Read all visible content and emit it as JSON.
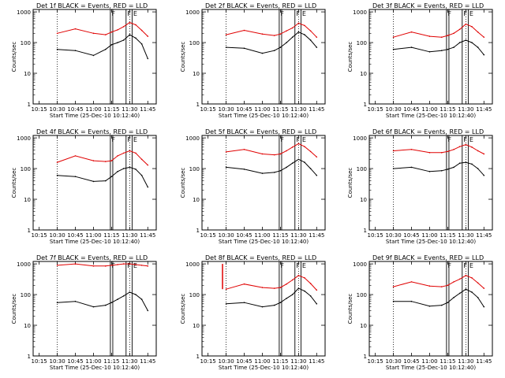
{
  "colors": {
    "events": "#000000",
    "lld": "#e00000",
    "axes": "#000000",
    "background": "#ffffff"
  },
  "common": {
    "ylabel": "Counts/sec",
    "xlabel": "Start Time (25-Dec-10 10:12:40)",
    "x_ticks": [
      "10:15",
      "10:30",
      "10:45",
      "11:00",
      "11:15",
      "11:30",
      "11:45"
    ],
    "y_ticks": [
      "1",
      "10",
      "100",
      "1000"
    ]
  },
  "chart_data": [
    {
      "type": "line",
      "title": "Det 1f BLACK = Events, RED = LLD",
      "x": [
        "10:30",
        "10:45",
        "11:00",
        "11:10",
        "11:15",
        "11:20",
        "11:25",
        "11:30",
        "11:35",
        "11:40",
        "11:45"
      ],
      "series": [
        {
          "name": "Events",
          "color": "#000000",
          "values": [
            60,
            55,
            38,
            60,
            85,
            100,
            120,
            180,
            140,
            90,
            30
          ]
        },
        {
          "name": "LLD",
          "color": "#e00000",
          "values": [
            200,
            280,
            200,
            180,
            220,
            260,
            330,
            450,
            380,
            250,
            160
          ]
        }
      ],
      "markers": [
        {
          "label": "F",
          "x": "11:14"
        },
        {
          "label": "",
          "x": "11:16"
        },
        {
          "label": "F",
          "x": "11:27"
        },
        {
          "label": "E",
          "x": "11:32"
        }
      ],
      "dotted_lines": [
        "10:30",
        "11:30"
      ]
    },
    {
      "type": "line",
      "title": "Det 2f BLACK = Events, RED = LLD",
      "x": [
        "10:30",
        "10:45",
        "11:00",
        "11:10",
        "11:15",
        "11:20",
        "11:25",
        "11:30",
        "11:35",
        "11:40",
        "11:45"
      ],
      "series": [
        {
          "name": "Events",
          "color": "#000000",
          "values": [
            70,
            65,
            45,
            55,
            70,
            100,
            150,
            220,
            180,
            120,
            70
          ]
        },
        {
          "name": "LLD",
          "color": "#e00000",
          "values": [
            180,
            250,
            190,
            170,
            190,
            240,
            300,
            430,
            360,
            240,
            150
          ]
        }
      ],
      "markers": [
        {
          "label": "F",
          "x": "11:14"
        },
        {
          "label": "",
          "x": "11:16"
        },
        {
          "label": "F",
          "x": "11:27"
        },
        {
          "label": "E",
          "x": "11:32"
        }
      ],
      "dotted_lines": [
        "10:30",
        "11:30"
      ]
    },
    {
      "type": "line",
      "title": "Det 3f BLACK = Events, RED = LLD",
      "x": [
        "10:30",
        "10:45",
        "11:00",
        "11:10",
        "11:15",
        "11:20",
        "11:25",
        "11:30",
        "11:35",
        "11:40",
        "11:45"
      ],
      "series": [
        {
          "name": "Events",
          "color": "#000000",
          "values": [
            60,
            70,
            50,
            55,
            60,
            70,
            100,
            120,
            100,
            70,
            40
          ]
        },
        {
          "name": "LLD",
          "color": "#e00000",
          "values": [
            150,
            220,
            160,
            150,
            170,
            200,
            270,
            400,
            330,
            220,
            150
          ]
        }
      ],
      "markers": [
        {
          "label": "F",
          "x": "11:14"
        },
        {
          "label": "",
          "x": "11:16"
        },
        {
          "label": "F",
          "x": "11:27"
        },
        {
          "label": "E",
          "x": "11:32"
        }
      ],
      "dotted_lines": [
        "10:30",
        "11:30"
      ]
    },
    {
      "type": "line",
      "title": "Det 4f BLACK = Events, RED = LLD",
      "x": [
        "10:30",
        "10:45",
        "11:00",
        "11:10",
        "11:15",
        "11:20",
        "11:25",
        "11:30",
        "11:35",
        "11:40",
        "11:45"
      ],
      "series": [
        {
          "name": "Events",
          "color": "#000000",
          "values": [
            60,
            55,
            38,
            40,
            55,
            80,
            100,
            110,
            95,
            60,
            25
          ]
        },
        {
          "name": "LLD",
          "color": "#e00000",
          "values": [
            160,
            260,
            180,
            170,
            180,
            260,
            320,
            380,
            320,
            200,
            130
          ]
        }
      ],
      "markers": [
        {
          "label": "F",
          "x": "11:14"
        },
        {
          "label": "",
          "x": "11:16"
        },
        {
          "label": "F",
          "x": "11:27"
        },
        {
          "label": "E",
          "x": "11:32"
        }
      ],
      "dotted_lines": [
        "10:30",
        "11:30"
      ]
    },
    {
      "type": "line",
      "title": "Det 5f BLACK = Events, RED = LLD",
      "x": [
        "10:30",
        "10:45",
        "11:00",
        "11:10",
        "11:15",
        "11:20",
        "11:25",
        "11:30",
        "11:35",
        "11:40",
        "11:45"
      ],
      "series": [
        {
          "name": "Events",
          "color": "#000000",
          "values": [
            110,
            95,
            70,
            75,
            85,
            110,
            150,
            200,
            160,
            100,
            60
          ]
        },
        {
          "name": "LLD",
          "color": "#e00000",
          "values": [
            350,
            420,
            300,
            280,
            300,
            380,
            500,
            650,
            520,
            360,
            240
          ]
        }
      ],
      "markers": [
        {
          "label": "F",
          "x": "11:14"
        },
        {
          "label": "",
          "x": "11:16"
        },
        {
          "label": "F",
          "x": "11:27"
        },
        {
          "label": "E",
          "x": "11:32"
        }
      ],
      "dotted_lines": [
        "10:30",
        "11:30"
      ]
    },
    {
      "type": "line",
      "title": "Det 6f BLACK = Events, RED = LLD",
      "x": [
        "10:30",
        "10:45",
        "11:00",
        "11:10",
        "11:15",
        "11:20",
        "11:25",
        "11:30",
        "11:35",
        "11:40",
        "11:45"
      ],
      "series": [
        {
          "name": "Events",
          "color": "#000000",
          "values": [
            100,
            110,
            80,
            85,
            95,
            110,
            150,
            160,
            140,
            100,
            60
          ]
        },
        {
          "name": "LLD",
          "color": "#e00000",
          "values": [
            380,
            420,
            330,
            330,
            360,
            420,
            520,
            600,
            500,
            380,
            300
          ]
        }
      ],
      "markers": [
        {
          "label": "F",
          "x": "11:14"
        },
        {
          "label": "",
          "x": "11:16"
        },
        {
          "label": "F",
          "x": "11:27"
        },
        {
          "label": "E",
          "x": "11:32"
        }
      ],
      "dotted_lines": [
        "10:30",
        "11:30"
      ]
    },
    {
      "type": "line",
      "title": "Det 7f BLACK = Events, RED = LLD",
      "x": [
        "10:30",
        "10:45",
        "11:00",
        "11:10",
        "11:15",
        "11:20",
        "11:25",
        "11:30",
        "11:35",
        "11:40",
        "11:45"
      ],
      "series": [
        {
          "name": "Events",
          "color": "#000000",
          "values": [
            55,
            60,
            40,
            45,
            55,
            70,
            90,
            120,
            100,
            70,
            30
          ]
        },
        {
          "name": "LLD",
          "color": "#e00000",
          "values": [
            900,
            1000,
            850,
            850,
            900,
            950,
            1000,
            1000,
            950,
            900,
            850
          ]
        }
      ],
      "markers": [
        {
          "label": "F",
          "x": "11:14"
        },
        {
          "label": "",
          "x": "11:16"
        },
        {
          "label": "F",
          "x": "11:27"
        },
        {
          "label": "E",
          "x": "11:32"
        }
      ],
      "dotted_lines": [
        "10:30",
        "11:30"
      ]
    },
    {
      "type": "line",
      "title": "Det 8f BLACK = Events, RED = LLD",
      "x": [
        "10:30",
        "10:45",
        "11:00",
        "11:10",
        "11:15",
        "11:20",
        "11:25",
        "11:30",
        "11:35",
        "11:40",
        "11:45"
      ],
      "series": [
        {
          "name": "Events",
          "color": "#000000",
          "values": [
            50,
            55,
            40,
            45,
            55,
            75,
            100,
            160,
            130,
            90,
            50
          ]
        },
        {
          "name": "LLD",
          "color": "#e00000",
          "values": [
            150,
            220,
            170,
            160,
            170,
            220,
            300,
            420,
            350,
            230,
            140
          ]
        }
      ],
      "markers": [
        {
          "label": "F",
          "x": "11:14"
        },
        {
          "label": "",
          "x": "11:16"
        },
        {
          "label": "F",
          "x": "11:27"
        },
        {
          "label": "E",
          "x": "11:32"
        }
      ],
      "dotted_lines": [
        "10:30",
        "11:30"
      ],
      "spike": {
        "x": "10:27",
        "value": 1000
      }
    },
    {
      "type": "line",
      "title": "Det 9f BLACK = Events, RED = LLD",
      "x": [
        "10:30",
        "10:45",
        "11:00",
        "11:10",
        "11:15",
        "11:20",
        "11:25",
        "11:30",
        "11:35",
        "11:40",
        "11:45"
      ],
      "series": [
        {
          "name": "Events",
          "color": "#000000",
          "values": [
            60,
            60,
            42,
            45,
            55,
            80,
            110,
            150,
            120,
            80,
            40
          ]
        },
        {
          "name": "LLD",
          "color": "#e00000",
          "values": [
            180,
            260,
            190,
            180,
            200,
            260,
            320,
            420,
            350,
            240,
            160
          ]
        }
      ],
      "markers": [
        {
          "label": "F",
          "x": "11:14"
        },
        {
          "label": "",
          "x": "11:16"
        },
        {
          "label": "F",
          "x": "11:27"
        },
        {
          "label": "E",
          "x": "11:32"
        }
      ],
      "dotted_lines": [
        "10:30",
        "11:30"
      ]
    }
  ]
}
